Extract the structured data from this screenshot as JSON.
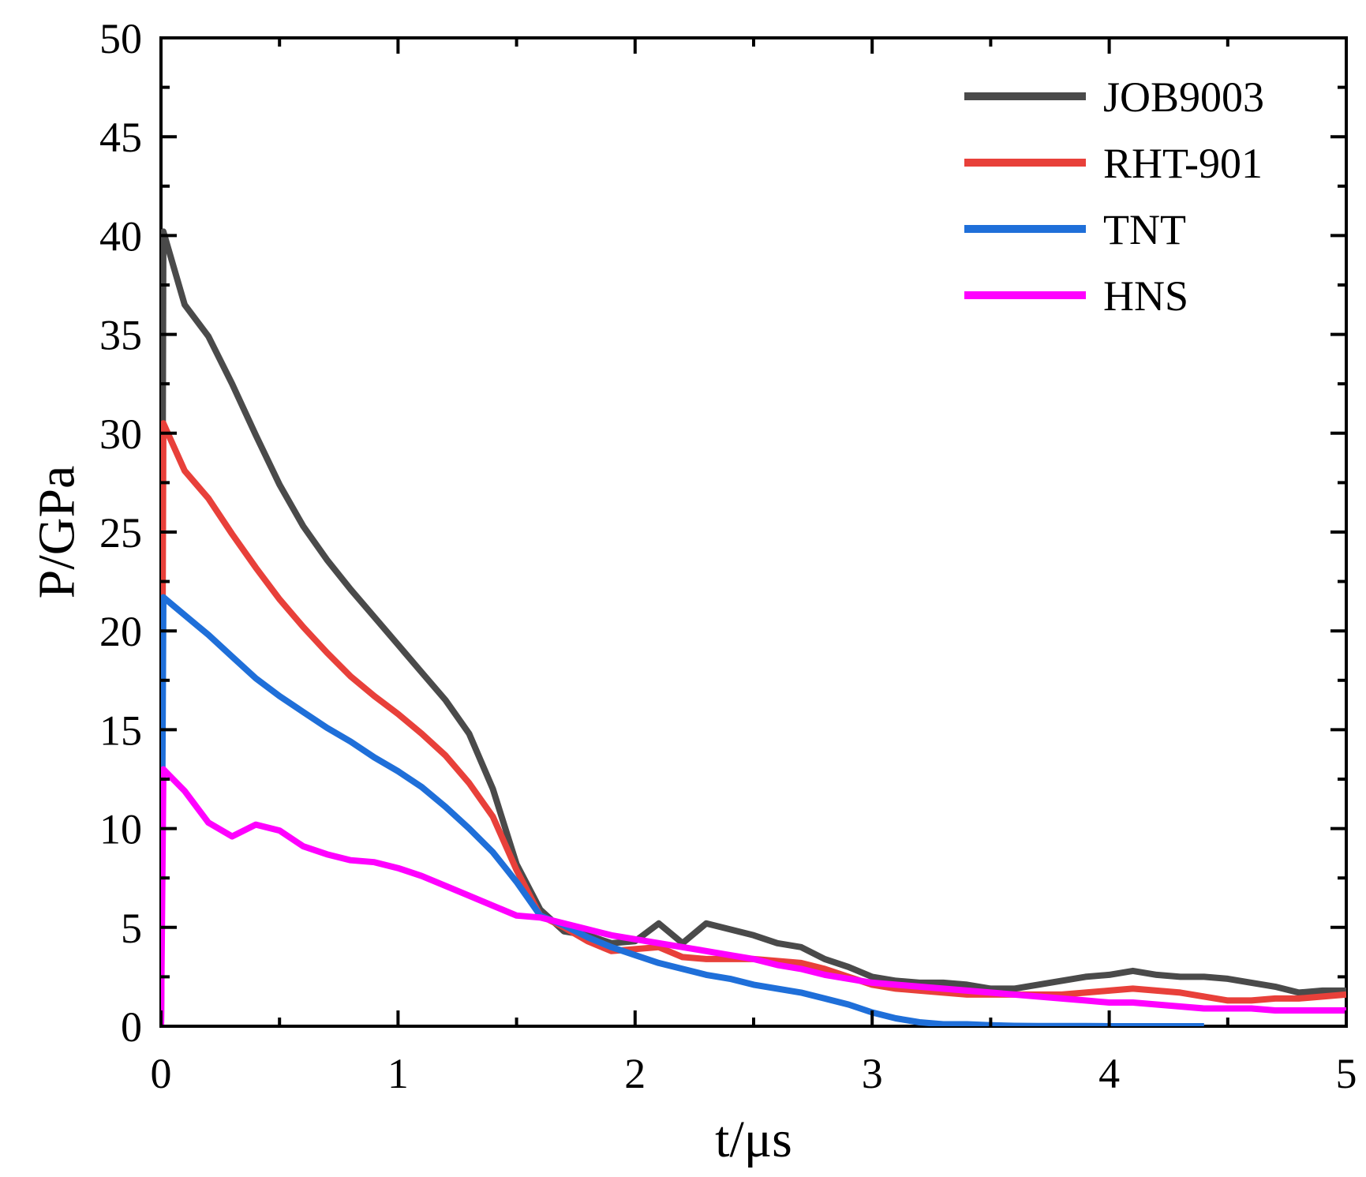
{
  "chart_data": {
    "type": "line",
    "title": "",
    "xlabel": "t/μs",
    "ylabel": "P/GPa",
    "xlim": [
      0,
      5
    ],
    "ylim": [
      0,
      50
    ],
    "xticks": [
      "0",
      "1",
      "2",
      "3",
      "4",
      "5"
    ],
    "yticks": [
      "0",
      "5",
      "10",
      "15",
      "20",
      "25",
      "30",
      "35",
      "40",
      "45",
      "50"
    ],
    "grid": false,
    "legend": "top-right",
    "series": [
      {
        "name": "JOB9003",
        "color": "#4a4a4a",
        "x": [
          0,
          0.01,
          0.1,
          0.2,
          0.3,
          0.4,
          0.5,
          0.6,
          0.7,
          0.8,
          0.9,
          1.0,
          1.1,
          1.2,
          1.3,
          1.4,
          1.5,
          1.6,
          1.7,
          1.8,
          1.9,
          2.0,
          2.1,
          2.2,
          2.3,
          2.4,
          2.5,
          2.6,
          2.7,
          2.8,
          2.9,
          3.0,
          3.1,
          3.2,
          3.3,
          3.4,
          3.5,
          3.6,
          3.7,
          3.8,
          3.9,
          4.0,
          4.1,
          4.2,
          4.3,
          4.4,
          4.5,
          4.6,
          4.7,
          4.8,
          4.9,
          5.0
        ],
        "y": [
          0,
          40.2,
          36.5,
          34.9,
          32.5,
          29.9,
          27.4,
          25.3,
          23.6,
          22.1,
          20.7,
          19.3,
          17.9,
          16.5,
          14.8,
          12.0,
          8.2,
          5.9,
          4.8,
          4.6,
          4.2,
          4.3,
          5.2,
          4.2,
          5.2,
          4.9,
          4.6,
          4.2,
          4.0,
          3.4,
          3.0,
          2.5,
          2.3,
          2.2,
          2.2,
          2.1,
          1.9,
          1.9,
          2.1,
          2.3,
          2.5,
          2.6,
          2.8,
          2.6,
          2.5,
          2.5,
          2.4,
          2.2,
          2.0,
          1.7,
          1.8,
          1.8
        ]
      },
      {
        "name": "RHT-901",
        "color": "#e8403a",
        "x": [
          0,
          0.01,
          0.1,
          0.2,
          0.3,
          0.4,
          0.5,
          0.6,
          0.7,
          0.8,
          0.9,
          1.0,
          1.1,
          1.2,
          1.3,
          1.4,
          1.5,
          1.6,
          1.7,
          1.8,
          1.9,
          2.0,
          2.1,
          2.2,
          2.3,
          2.4,
          2.5,
          2.6,
          2.7,
          2.8,
          2.9,
          3.0,
          3.1,
          3.2,
          3.3,
          3.4,
          3.5,
          3.6,
          3.7,
          3.8,
          3.9,
          4.0,
          4.1,
          4.2,
          4.3,
          4.4,
          4.5,
          4.6,
          4.7,
          4.8,
          4.9,
          5.0
        ],
        "y": [
          0,
          30.5,
          28.1,
          26.7,
          24.9,
          23.2,
          21.6,
          20.2,
          18.9,
          17.7,
          16.7,
          15.8,
          14.8,
          13.7,
          12.3,
          10.6,
          7.9,
          5.6,
          5.0,
          4.3,
          3.8,
          3.9,
          4.0,
          3.5,
          3.4,
          3.4,
          3.4,
          3.3,
          3.2,
          2.9,
          2.5,
          2.1,
          1.9,
          1.8,
          1.7,
          1.6,
          1.6,
          1.6,
          1.6,
          1.6,
          1.7,
          1.8,
          1.9,
          1.8,
          1.7,
          1.5,
          1.3,
          1.3,
          1.4,
          1.4,
          1.5,
          1.6
        ]
      },
      {
        "name": "TNT",
        "color": "#1f6fd9",
        "x": [
          0,
          0.01,
          0.1,
          0.2,
          0.3,
          0.4,
          0.5,
          0.6,
          0.7,
          0.8,
          0.9,
          1.0,
          1.1,
          1.2,
          1.3,
          1.4,
          1.5,
          1.6,
          1.7,
          1.8,
          1.9,
          2.0,
          2.1,
          2.2,
          2.3,
          2.4,
          2.5,
          2.6,
          2.7,
          2.8,
          2.9,
          3.0,
          3.1,
          3.2,
          3.3,
          3.4,
          3.5,
          3.6,
          3.7,
          3.8,
          3.9,
          4.0,
          4.1,
          4.2,
          4.3,
          4.4
        ],
        "y": [
          0,
          21.7,
          20.8,
          19.8,
          18.7,
          17.6,
          16.7,
          15.9,
          15.1,
          14.4,
          13.6,
          12.9,
          12.1,
          11.1,
          10.0,
          8.8,
          7.3,
          5.6,
          5.1,
          4.5,
          4.0,
          3.6,
          3.2,
          2.9,
          2.6,
          2.4,
          2.1,
          1.9,
          1.7,
          1.4,
          1.1,
          0.7,
          0.4,
          0.2,
          0.1,
          0.1,
          0.05,
          0.02,
          0.01,
          0.01,
          0.01,
          0.0,
          0.0,
          0.0,
          0.0,
          0.0
        ]
      },
      {
        "name": "HNS",
        "color": "#ff00ff",
        "x": [
          0,
          0.01,
          0.1,
          0.2,
          0.3,
          0.4,
          0.5,
          0.6,
          0.7,
          0.8,
          0.9,
          1.0,
          1.1,
          1.2,
          1.3,
          1.4,
          1.5,
          1.6,
          1.7,
          1.8,
          1.9,
          2.0,
          2.1,
          2.2,
          2.3,
          2.4,
          2.5,
          2.6,
          2.7,
          2.8,
          2.9,
          3.0,
          3.1,
          3.2,
          3.3,
          3.4,
          3.5,
          3.6,
          3.7,
          3.8,
          3.9,
          4.0,
          4.1,
          4.2,
          4.3,
          4.4,
          4.5,
          4.6,
          4.7,
          4.8,
          4.9,
          5.0
        ],
        "y": [
          0,
          13.0,
          11.9,
          10.3,
          9.6,
          10.2,
          9.9,
          9.1,
          8.7,
          8.4,
          8.3,
          8.0,
          7.6,
          7.1,
          6.6,
          6.1,
          5.6,
          5.5,
          5.2,
          4.9,
          4.6,
          4.4,
          4.2,
          4.0,
          3.8,
          3.6,
          3.4,
          3.1,
          2.9,
          2.6,
          2.4,
          2.2,
          2.1,
          2.0,
          1.9,
          1.8,
          1.7,
          1.6,
          1.5,
          1.4,
          1.3,
          1.2,
          1.2,
          1.1,
          1.0,
          0.9,
          0.9,
          0.9,
          0.8,
          0.8,
          0.8,
          0.8
        ]
      }
    ]
  }
}
